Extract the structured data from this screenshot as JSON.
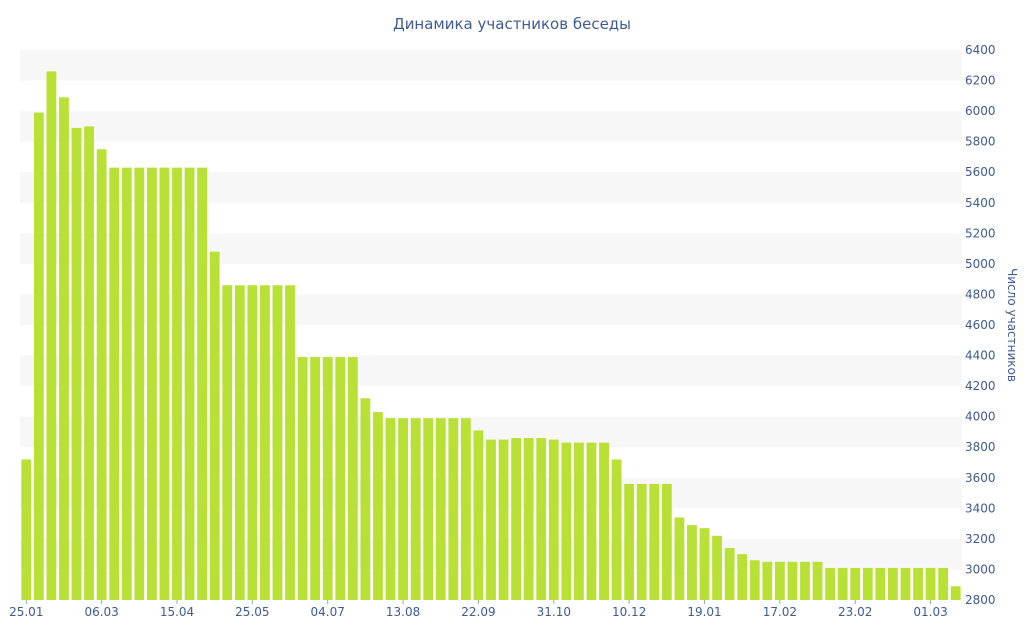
{
  "chart_data": {
    "type": "bar",
    "title": "Динамика участников беседы",
    "xlabel": "",
    "ylabel": "Число участников",
    "y_axis_side": "right",
    "ylim": [
      2800,
      6400
    ],
    "y_ticks": [
      2800,
      3000,
      3200,
      3400,
      3600,
      3800,
      4000,
      4200,
      4400,
      4600,
      4800,
      5000,
      5200,
      5400,
      5600,
      5800,
      6000,
      6200,
      6400
    ],
    "x_tick_labels": [
      {
        "index": 0,
        "label": "25.01"
      },
      {
        "index": 6,
        "label": "06.03"
      },
      {
        "index": 12,
        "label": "15.04"
      },
      {
        "index": 18,
        "label": "25.05"
      },
      {
        "index": 24,
        "label": "04.07"
      },
      {
        "index": 30,
        "label": "13.08"
      },
      {
        "index": 36,
        "label": "22.09"
      },
      {
        "index": 42,
        "label": "31.10"
      },
      {
        "index": 48,
        "label": "10.12"
      },
      {
        "index": 54,
        "label": "19.01"
      },
      {
        "index": 60,
        "label": "17.02"
      },
      {
        "index": 66,
        "label": "23.02"
      },
      {
        "index": 72,
        "label": "01.03"
      }
    ],
    "values": [
      3720,
      5990,
      6260,
      6090,
      5890,
      5900,
      5750,
      5630,
      5630,
      5630,
      5630,
      5630,
      5630,
      5630,
      5630,
      5080,
      4860,
      4860,
      4860,
      4860,
      4860,
      4860,
      4390,
      4390,
      4390,
      4390,
      4390,
      4120,
      4030,
      3990,
      3990,
      3990,
      3990,
      3990,
      3990,
      3990,
      3910,
      3850,
      3850,
      3860,
      3860,
      3860,
      3850,
      3830,
      3830,
      3830,
      3830,
      3720,
      3560,
      3560,
      3560,
      3560,
      3340,
      3290,
      3270,
      3220,
      3140,
      3100,
      3060,
      3050,
      3050,
      3050,
      3050,
      3050,
      3010,
      3010,
      3010,
      3010,
      3010,
      3010,
      3010,
      3010,
      3010,
      3010,
      2890
    ],
    "bar_color": "#b9e034",
    "text_color": "#3e5b96",
    "band_color": "#f7f7f7",
    "grid": "alternating-bands"
  }
}
